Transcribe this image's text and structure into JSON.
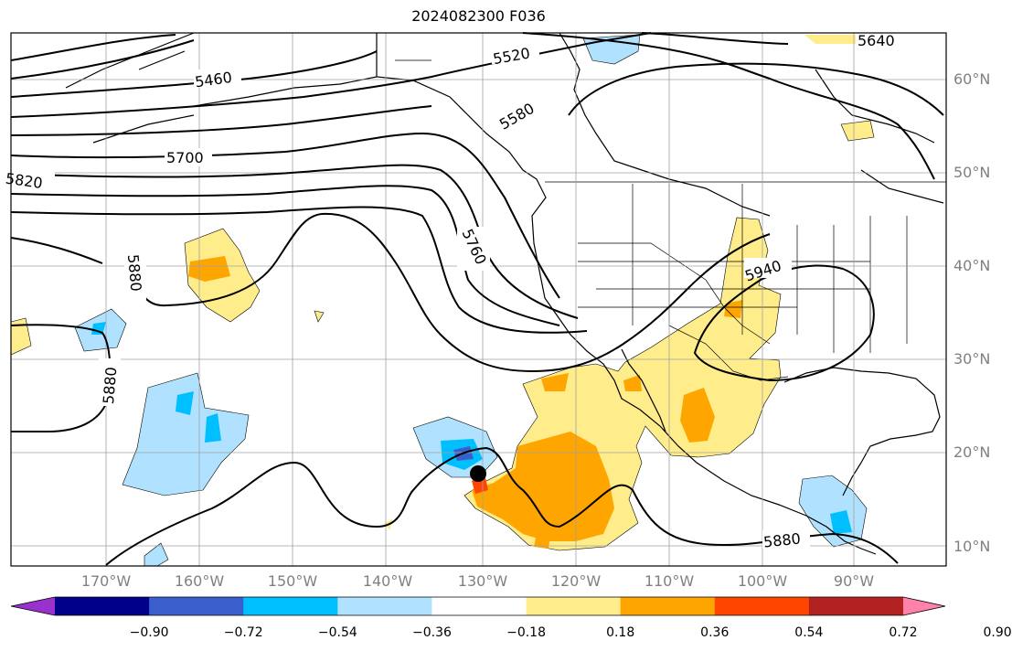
{
  "title": "2024082300 F036",
  "lat_labels": [
    "60°N",
    "50°N",
    "40°N",
    "30°N",
    "20°N",
    "10°N"
  ],
  "lon_labels": [
    "170°W",
    "160°W",
    "150°W",
    "140°W",
    "130°W",
    "120°W",
    "110°W",
    "100°W",
    "90°W"
  ],
  "contour_labels": [
    "5460",
    "5520",
    "5580",
    "5640",
    "5700",
    "5820",
    "5760",
    "5880",
    "5880",
    "5940",
    "5880"
  ],
  "colorbar": {
    "tick_labels": [
      "−0.90",
      "−0.72",
      "−0.54",
      "−0.36",
      "−0.18",
      "0.18",
      "0.36",
      "0.54",
      "0.72",
      "0.90"
    ],
    "colors": [
      "#9932cc",
      "#00008b",
      "#3a5fcd",
      "#00bfff",
      "#b0e2ff",
      "#ffffff",
      "#ffec8b",
      "#ffa500",
      "#ff4500",
      "#b22222",
      "#ff82ab"
    ]
  },
  "marker_color": "#000000"
}
